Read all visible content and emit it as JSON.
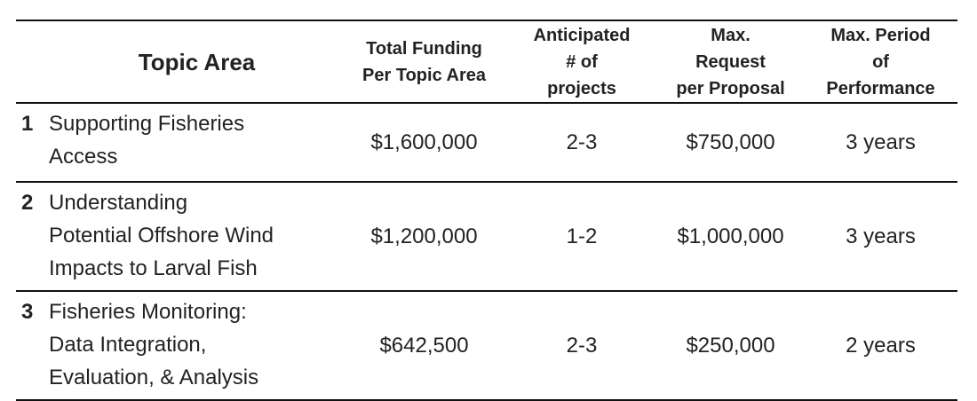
{
  "table": {
    "header": [
      [
        "Topic Area"
      ],
      [
        "Total Funding",
        "Per Topic Area"
      ],
      [
        "Anticipated",
        "# of",
        "projects"
      ],
      [
        "Max.",
        "Request",
        "per Proposal"
      ],
      [
        "Max. Period",
        "of",
        "Performance"
      ]
    ],
    "rows": [
      {
        "number": "1",
        "topic": [
          "Supporting Fisheries",
          "Access"
        ],
        "funding": "$1,600,000",
        "projects": "2-3",
        "max_request": "$750,000",
        "period": "3 years"
      },
      {
        "number": "2",
        "topic": [
          "Understanding",
          "Potential Offshore Wind",
          "Impacts to Larval Fish"
        ],
        "funding": "$1,200,000",
        "projects": "1-2",
        "max_request": "$1,000,000",
        "period": "3 years"
      },
      {
        "number": "3",
        "topic": [
          "Fisheries Monitoring:",
          "Data Integration,",
          "Evaluation, & Analysis"
        ],
        "funding": "$642,500",
        "projects": "2-3",
        "max_request": "$250,000",
        "period": "2 years"
      }
    ]
  }
}
